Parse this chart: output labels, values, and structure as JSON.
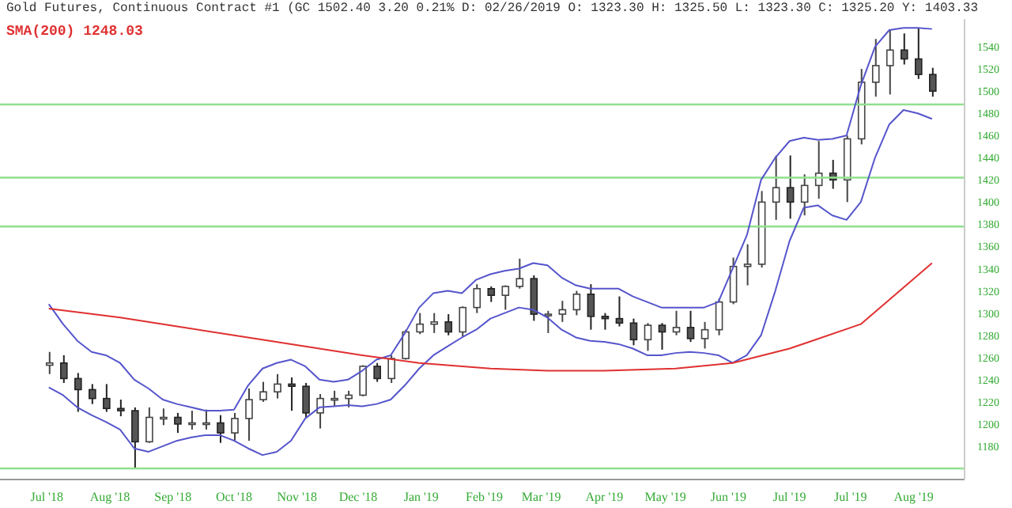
{
  "chart_data": {
    "type": "candlestick",
    "title": "Gold Futures, Continuous Contract #1 (GC 1502.40 3.20 0.21% D: 02/26/2019 O: 1323.30 H: 1325.50 L: 1323.30 C: 1325.20 Y: 1403.33",
    "x": [
      "2018-07-02",
      "2018-07-09",
      "2018-07-16",
      "2018-07-23",
      "2018-07-30",
      "2018-08-06",
      "2018-08-13",
      "2018-08-20",
      "2018-08-27",
      "2018-09-03",
      "2018-09-10",
      "2018-09-17",
      "2018-09-24",
      "2018-10-01",
      "2018-10-08",
      "2018-10-15",
      "2018-10-22",
      "2018-10-29",
      "2018-11-05",
      "2018-11-12",
      "2018-11-19",
      "2018-11-26",
      "2018-12-03",
      "2018-12-10",
      "2018-12-17",
      "2018-12-24",
      "2018-12-31",
      "2019-01-07",
      "2019-01-14",
      "2019-01-21",
      "2019-01-28",
      "2019-02-04",
      "2019-02-11",
      "2019-02-18",
      "2019-02-25",
      "2019-03-04",
      "2019-03-11",
      "2019-03-18",
      "2019-03-25",
      "2019-04-01",
      "2019-04-08",
      "2019-04-15",
      "2019-04-22",
      "2019-04-29",
      "2019-05-06",
      "2019-05-13",
      "2019-05-20",
      "2019-05-27",
      "2019-06-03",
      "2019-06-10",
      "2019-06-17",
      "2019-06-24",
      "2019-07-01",
      "2019-07-08",
      "2019-07-15",
      "2019-07-22",
      "2019-07-29",
      "2019-08-05",
      "2019-08-12",
      "2019-08-19",
      "2019-08-26",
      "2019-09-02",
      "2019-09-09"
    ],
    "ohlc": [
      [
        1253,
        1265,
        1245,
        1255
      ],
      [
        1255,
        1262,
        1237,
        1241
      ],
      [
        1241,
        1246,
        1211,
        1231
      ],
      [
        1231,
        1236,
        1218,
        1223
      ],
      [
        1223,
        1236,
        1211,
        1214
      ],
      [
        1214,
        1222,
        1207,
        1212
      ],
      [
        1212,
        1215,
        1160,
        1184
      ],
      [
        1184,
        1215,
        1183,
        1206
      ],
      [
        1206,
        1214,
        1199,
        1206
      ],
      [
        1206,
        1210,
        1192,
        1200
      ],
      [
        1200,
        1212,
        1195,
        1201
      ],
      [
        1201,
        1213,
        1195,
        1201
      ],
      [
        1201,
        1208,
        1183,
        1192
      ],
      [
        1192,
        1210,
        1185,
        1205
      ],
      [
        1205,
        1232,
        1185,
        1222
      ],
      [
        1222,
        1238,
        1220,
        1229
      ],
      [
        1229,
        1245,
        1223,
        1236
      ],
      [
        1236,
        1242,
        1212,
        1234
      ],
      [
        1234,
        1237,
        1206,
        1210
      ],
      [
        1210,
        1227,
        1196,
        1223
      ],
      [
        1223,
        1230,
        1216,
        1223
      ],
      [
        1223,
        1230,
        1215,
        1226
      ],
      [
        1226,
        1253,
        1225,
        1252
      ],
      [
        1252,
        1255,
        1238,
        1241
      ],
      [
        1241,
        1262,
        1237,
        1259
      ],
      [
        1259,
        1285,
        1258,
        1283
      ],
      [
        1283,
        1300,
        1281,
        1290
      ],
      [
        1290,
        1300,
        1282,
        1292
      ],
      [
        1292,
        1299,
        1280,
        1283
      ],
      [
        1283,
        1306,
        1279,
        1305
      ],
      [
        1305,
        1326,
        1300,
        1322
      ],
      [
        1322,
        1324,
        1310,
        1316
      ],
      [
        1316,
        1325,
        1303,
        1324
      ],
      [
        1324,
        1349,
        1322,
        1331
      ],
      [
        1331,
        1334,
        1293,
        1299
      ],
      [
        1299,
        1302,
        1282,
        1299
      ],
      [
        1299,
        1311,
        1292,
        1303
      ],
      [
        1303,
        1320,
        1298,
        1317
      ],
      [
        1317,
        1326,
        1285,
        1297
      ],
      [
        1297,
        1300,
        1285,
        1295
      ],
      [
        1295,
        1315,
        1288,
        1291
      ],
      [
        1291,
        1295,
        1271,
        1276
      ],
      [
        1276,
        1291,
        1266,
        1289
      ],
      [
        1289,
        1291,
        1267,
        1283
      ],
      [
        1283,
        1302,
        1280,
        1287
      ],
      [
        1287,
        1302,
        1274,
        1277
      ],
      [
        1277,
        1292,
        1268,
        1285
      ],
      [
        1285,
        1313,
        1280,
        1310
      ],
      [
        1310,
        1350,
        1308,
        1342
      ],
      [
        1342,
        1362,
        1325,
        1344
      ],
      [
        1344,
        1410,
        1341,
        1400
      ],
      [
        1400,
        1442,
        1384,
        1413
      ],
      [
        1413,
        1442,
        1385,
        1400
      ],
      [
        1400,
        1425,
        1388,
        1415
      ],
      [
        1415,
        1455,
        1403,
        1426
      ],
      [
        1426,
        1438,
        1412,
        1420
      ],
      [
        1420,
        1460,
        1400,
        1457
      ],
      [
        1457,
        1520,
        1452,
        1508
      ],
      [
        1508,
        1547,
        1495,
        1523
      ],
      [
        1523,
        1555,
        1497,
        1537
      ],
      [
        1537,
        1552,
        1524,
        1529
      ],
      [
        1529,
        1557,
        1511,
        1515
      ],
      [
        1515,
        1521,
        1495,
        1500
      ]
    ],
    "series": [
      {
        "type": "line",
        "color": "#5555cc",
        "values": [
          1308,
          1290,
          1275,
          1265,
          1262,
          1255,
          1240,
          1232,
          1222,
          1218,
          1215,
          1212,
          1212,
          1213,
          1235,
          1250,
          1255,
          1258,
          1252,
          1240,
          1238,
          1240,
          1248,
          1258,
          1262,
          1282,
          1305,
          1318,
          1320,
          1318,
          1330,
          1335,
          1338,
          1340,
          1345,
          1343,
          1332,
          1325,
          1322,
          1322,
          1322,
          1315,
          1310,
          1305,
          1305,
          1305,
          1305,
          1310,
          1340,
          1370,
          1420,
          1440,
          1455,
          1458,
          1456,
          1457,
          1460,
          1505,
          1540,
          1555,
          1557,
          1557,
          1556
        ]
      },
      {
        "type": "line",
        "color": "#5555cc",
        "values": [
          1233,
          1226,
          1215,
          1208,
          1202,
          1195,
          1178,
          1175,
          1180,
          1185,
          1188,
          1190,
          1190,
          1185,
          1178,
          1172,
          1175,
          1185,
          1205,
          1215,
          1216,
          1217,
          1216,
          1218,
          1222,
          1235,
          1250,
          1262,
          1270,
          1278,
          1285,
          1295,
          1300,
          1305,
          1303,
          1296,
          1285,
          1278,
          1275,
          1274,
          1272,
          1268,
          1262,
          1262,
          1264,
          1265,
          1264,
          1262,
          1255,
          1262,
          1280,
          1320,
          1365,
          1395,
          1397,
          1388,
          1384,
          1400,
          1440,
          1470,
          1483,
          1480,
          1475
        ]
      },
      {
        "type": "line",
        "name": "SMA(200) 1248.03",
        "color": "#e03030",
        "x": [
          "2018-07-02",
          "2018-08-06",
          "2018-09-03",
          "2018-10-01",
          "2018-11-05",
          "2018-12-03",
          "2018-12-31",
          "2019-02-04",
          "2019-03-04",
          "2019-04-01",
          "2019-05-06",
          "2019-06-03",
          "2019-07-01",
          "2019-08-05",
          "2019-09-09"
        ],
        "values": [
          1304,
          1296,
          1288,
          1280,
          1270,
          1262,
          1255,
          1250,
          1248,
          1248,
          1250,
          1255,
          1268,
          1290,
          1345
        ]
      }
    ],
    "xlim": [
      "2018-06-08",
      "2019-09-25"
    ],
    "xticks": [
      {
        "value": "2018-07-01",
        "label": "Jul '18"
      },
      {
        "value": "2018-08-01",
        "label": "Aug '18"
      },
      {
        "value": "2018-09-01",
        "label": "Sep '18"
      },
      {
        "value": "2018-10-01",
        "label": "Oct '18"
      },
      {
        "value": "2018-11-01",
        "label": "Nov '18"
      },
      {
        "value": "2018-12-01",
        "label": "Dec '18"
      },
      {
        "value": "2019-01-01",
        "label": "Jan '19"
      },
      {
        "value": "2019-02-01",
        "label": "Feb '19"
      },
      {
        "value": "2019-03-01",
        "label": "Mar '19"
      },
      {
        "value": "2019-04-01",
        "label": "Apr '19"
      },
      {
        "value": "2019-05-01",
        "label": "May '19"
      },
      {
        "value": "2019-06-01",
        "label": "Jun '19"
      },
      {
        "value": "2019-07-01",
        "label": "Jul '19"
      },
      {
        "value": "2019-07-31",
        "label": "Jul '19"
      },
      {
        "value": "2019-08-31",
        "label": "Aug '19"
      }
    ],
    "ylim": [
      1150,
      1565
    ],
    "yticks": [
      1180,
      1200,
      1220,
      1240,
      1260,
      1280,
      1300,
      1320,
      1340,
      1360,
      1380,
      1400,
      1420,
      1440,
      1460,
      1480,
      1500,
      1520,
      1540
    ],
    "ref_lines": [
      {
        "axis": "y",
        "value": 1488,
        "color": "#90e090"
      },
      {
        "axis": "y",
        "value": 1422,
        "color": "#90e090"
      },
      {
        "axis": "y",
        "value": 1378,
        "color": "#90e090"
      },
      {
        "axis": "y",
        "value": 1160,
        "color": "#90e090"
      }
    ],
    "legend": "top left",
    "grid": false,
    "marker": "none"
  }
}
